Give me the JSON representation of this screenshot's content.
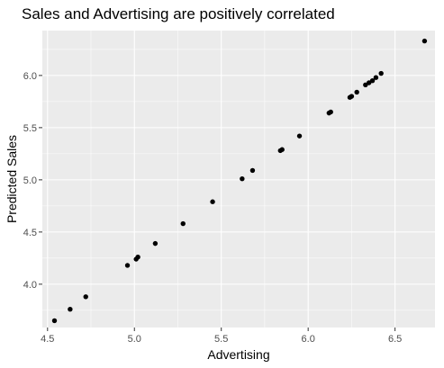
{
  "chart_data": {
    "type": "scatter",
    "title": "Sales and Advertising are positively correlated",
    "xlabel": "Advertising",
    "ylabel": "Predicted Sales",
    "xlim": [
      4.47,
      6.73
    ],
    "ylim": [
      3.585,
      6.43
    ],
    "x_ticks": [
      4.5,
      5.0,
      5.5,
      6.0,
      6.5
    ],
    "x_tick_labels": [
      "4.5",
      "5.0",
      "5.5",
      "6.0",
      "6.5"
    ],
    "y_ticks": [
      4.0,
      4.5,
      5.0,
      5.5,
      6.0
    ],
    "y_tick_labels": [
      "4.0",
      "4.5",
      "5.0",
      "5.5",
      "6.0"
    ],
    "grid": true,
    "colors": {
      "panel": "#ebebeb",
      "grid_major": "#ffffff",
      "point": "#000000",
      "tick": "#333333"
    },
    "points": [
      {
        "x": 4.54,
        "y": 3.65
      },
      {
        "x": 4.63,
        "y": 3.76
      },
      {
        "x": 4.72,
        "y": 3.88
      },
      {
        "x": 4.96,
        "y": 4.18
      },
      {
        "x": 5.01,
        "y": 4.24
      },
      {
        "x": 5.02,
        "y": 4.26
      },
      {
        "x": 5.12,
        "y": 4.39
      },
      {
        "x": 5.28,
        "y": 4.58
      },
      {
        "x": 5.45,
        "y": 4.79
      },
      {
        "x": 5.62,
        "y": 5.01
      },
      {
        "x": 5.68,
        "y": 5.09
      },
      {
        "x": 5.84,
        "y": 5.28
      },
      {
        "x": 5.85,
        "y": 5.29
      },
      {
        "x": 5.95,
        "y": 5.42
      },
      {
        "x": 6.12,
        "y": 5.64
      },
      {
        "x": 6.13,
        "y": 5.65
      },
      {
        "x": 6.24,
        "y": 5.79
      },
      {
        "x": 6.25,
        "y": 5.8
      },
      {
        "x": 6.28,
        "y": 5.84
      },
      {
        "x": 6.33,
        "y": 5.91
      },
      {
        "x": 6.35,
        "y": 5.93
      },
      {
        "x": 6.37,
        "y": 5.95
      },
      {
        "x": 6.39,
        "y": 5.98
      },
      {
        "x": 6.42,
        "y": 6.02
      },
      {
        "x": 6.67,
        "y": 6.33
      }
    ]
  }
}
